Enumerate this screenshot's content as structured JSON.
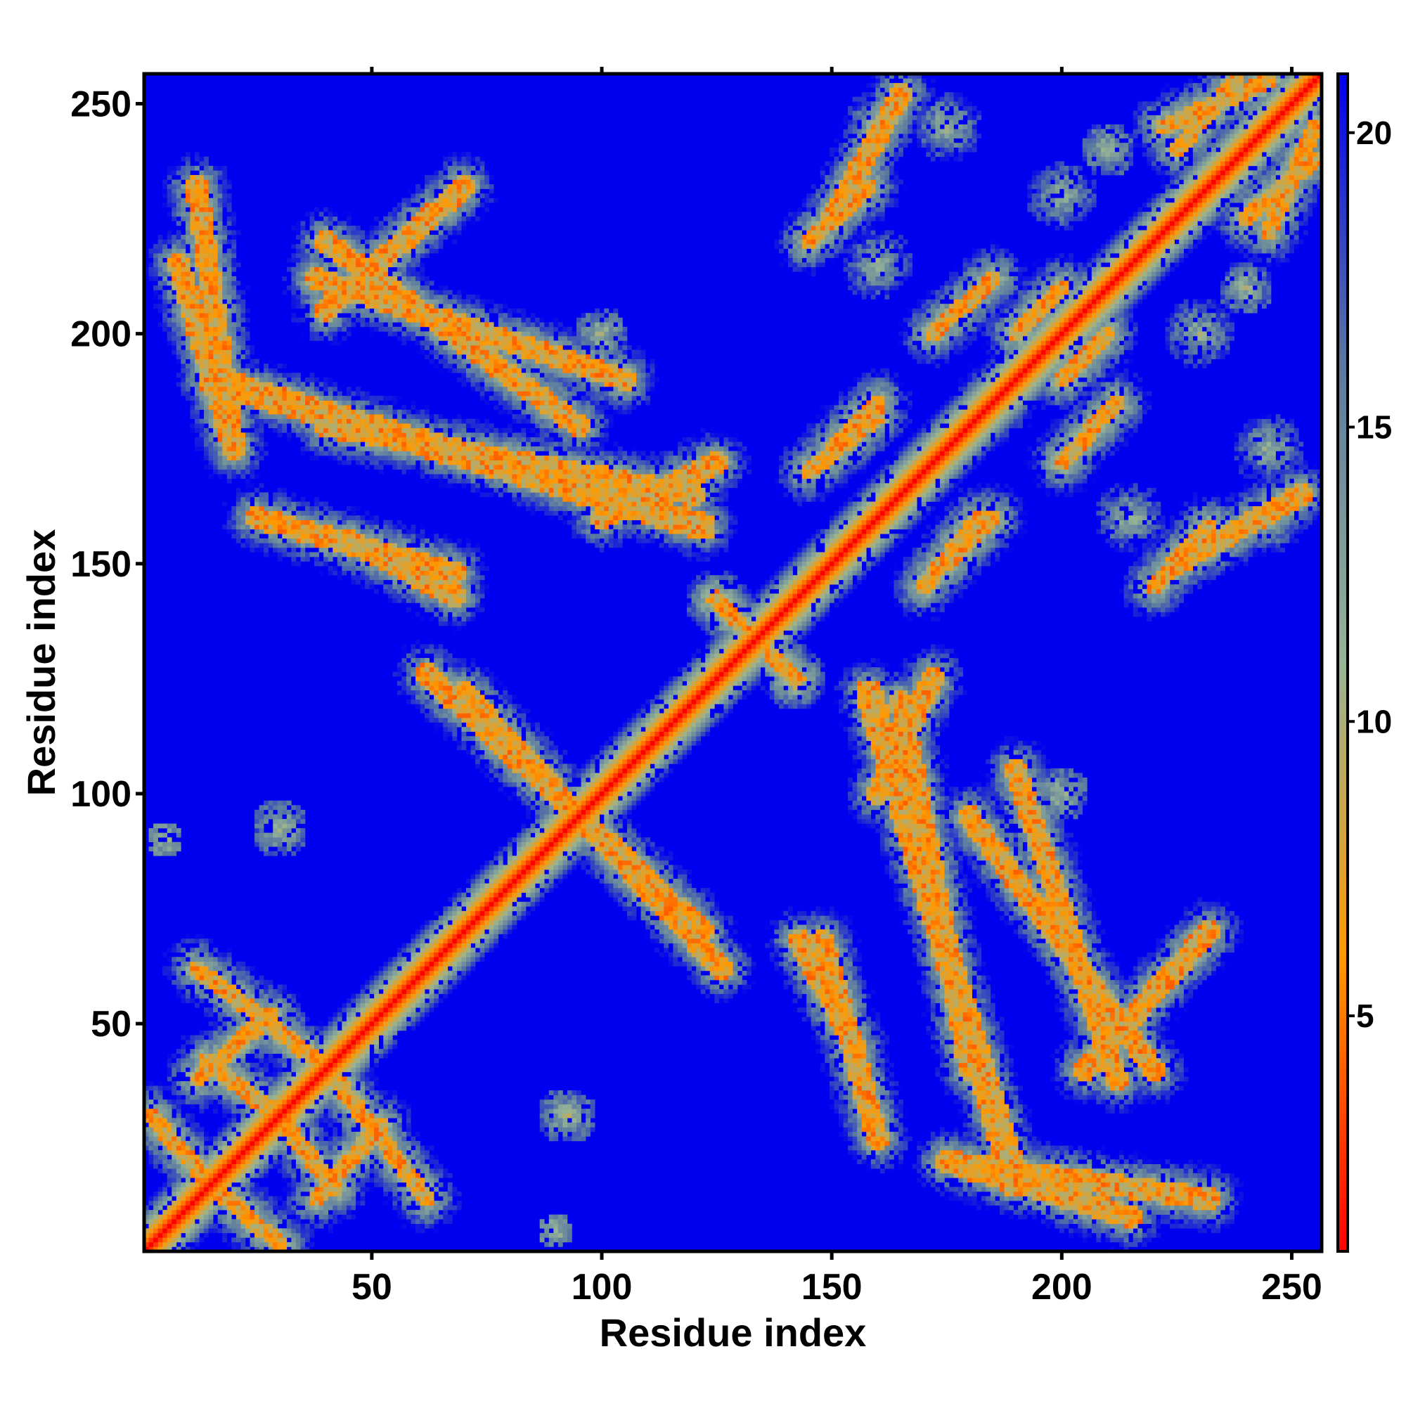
{
  "chart_data": {
    "type": "heatmap",
    "title": "",
    "xlabel": "Residue index",
    "ylabel": "Residue index",
    "xlim": [
      1,
      256
    ],
    "ylim": [
      1,
      256
    ],
    "x_ticks": [
      50,
      100,
      150,
      200,
      250
    ],
    "y_ticks": [
      50,
      100,
      150,
      200,
      250
    ],
    "colorbar": {
      "ticks": [
        5,
        10,
        15,
        20
      ],
      "range": [
        1,
        21
      ],
      "colors": [
        "#ff0000",
        "#ff9900",
        "#96b496",
        "#5c7aa0",
        "#0000ee"
      ]
    },
    "saturated_value": 21,
    "background_color": "#0000ee",
    "segments": [
      {
        "x1": 1,
        "y1": 1,
        "x2": 256,
        "y2": 256,
        "half_width": 7,
        "kind": "diagonal"
      },
      {
        "x1": 15,
        "y1": 15,
        "x2": 30,
        "y2": 2,
        "half_width": 3,
        "kind": "contact"
      },
      {
        "x1": 12,
        "y1": 38,
        "x2": 28,
        "y2": 52,
        "half_width": 3,
        "kind": "contact"
      },
      {
        "x1": 28,
        "y1": 32,
        "x2": 42,
        "y2": 14,
        "half_width": 3,
        "kind": "contact"
      },
      {
        "x1": 42,
        "y1": 38,
        "x2": 62,
        "y2": 12,
        "half_width": 3,
        "kind": "contact"
      },
      {
        "x1": 70,
        "y1": 122,
        "x2": 126,
        "y2": 62,
        "half_width": 4,
        "kind": "contact"
      },
      {
        "x1": 125,
        "y1": 143,
        "x2": 142,
        "y2": 124,
        "half_width": 2,
        "kind": "contact"
      },
      {
        "x1": 40,
        "y1": 220,
        "x2": 95,
        "y2": 180,
        "half_width": 4,
        "kind": "contact"
      },
      {
        "x1": 40,
        "y1": 180,
        "x2": 120,
        "y2": 165,
        "half_width": 4,
        "kind": "contact"
      },
      {
        "x1": 45,
        "y1": 155,
        "x2": 68,
        "y2": 143,
        "half_width": 4,
        "kind": "contact"
      },
      {
        "x1": 100,
        "y1": 160,
        "x2": 125,
        "y2": 172,
        "half_width": 4,
        "kind": "contact"
      },
      {
        "x1": 8,
        "y1": 215,
        "x2": 20,
        "y2": 175,
        "half_width": 4,
        "kind": "contact"
      },
      {
        "x1": 148,
        "y1": 68,
        "x2": 160,
        "y2": 25,
        "half_width": 4,
        "kind": "contact"
      },
      {
        "x1": 158,
        "y1": 122,
        "x2": 190,
        "y2": 15,
        "half_width": 5,
        "kind": "contact"
      },
      {
        "x1": 190,
        "y1": 105,
        "x2": 212,
        "y2": 38,
        "half_width": 4,
        "kind": "contact"
      },
      {
        "x1": 205,
        "y1": 40,
        "x2": 232,
        "y2": 70,
        "half_width": 4,
        "kind": "contact"
      },
      {
        "x1": 175,
        "y1": 20,
        "x2": 232,
        "y2": 12,
        "half_width": 4,
        "kind": "contact"
      },
      {
        "x1": 150,
        "y1": 225,
        "x2": 165,
        "y2": 252,
        "half_width": 4,
        "kind": "contact"
      },
      {
        "x1": 150,
        "y1": 175,
        "x2": 160,
        "y2": 185,
        "half_width": 3,
        "kind": "contact"
      },
      {
        "x1": 170,
        "y1": 145,
        "x2": 182,
        "y2": 160,
        "half_width": 3,
        "kind": "contact"
      },
      {
        "x1": 172,
        "y1": 200,
        "x2": 185,
        "y2": 212,
        "half_width": 3,
        "kind": "contact"
      },
      {
        "x1": 220,
        "y1": 145,
        "x2": 232,
        "y2": 158,
        "half_width": 3,
        "kind": "contact"
      },
      {
        "x1": 240,
        "y1": 225,
        "x2": 255,
        "y2": 238,
        "half_width": 3,
        "kind": "contact"
      },
      {
        "x1": 222,
        "y1": 245,
        "x2": 245,
        "y2": 255,
        "half_width": 3,
        "kind": "contact"
      },
      {
        "x1": 200,
        "y1": 190,
        "x2": 210,
        "y2": 200,
        "half_width": 3,
        "kind": "contact"
      }
    ],
    "blobs": [
      {
        "x": 30,
        "y": 93,
        "r": 6
      },
      {
        "x": 92,
        "y": 30,
        "r": 6
      },
      {
        "x": 5,
        "y": 90,
        "r": 4
      },
      {
        "x": 175,
        "y": 245,
        "r": 8
      },
      {
        "x": 245,
        "y": 160,
        "r": 8
      },
      {
        "x": 210,
        "y": 240,
        "r": 6
      },
      {
        "x": 185,
        "y": 185,
        "r": 10
      },
      {
        "x": 230,
        "y": 200,
        "r": 8
      },
      {
        "x": 160,
        "y": 215,
        "r": 8
      },
      {
        "x": 100,
        "y": 200,
        "r": 6
      }
    ]
  }
}
